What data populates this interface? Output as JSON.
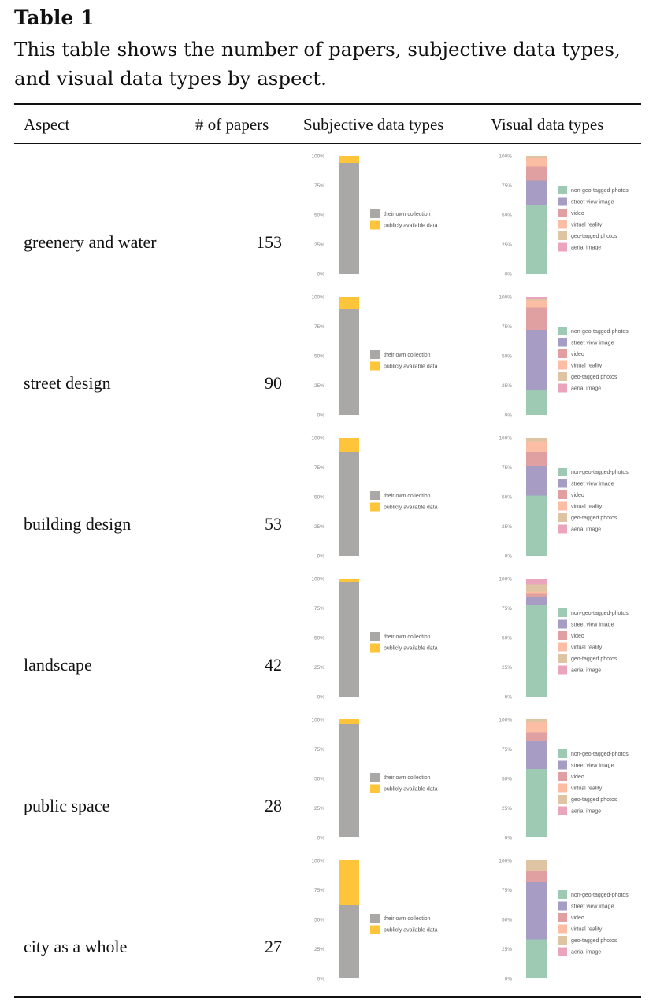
{
  "caption": {
    "label": "Table 1",
    "text": "This table shows the number of papers, subjective data types, and visual data types by aspect."
  },
  "headers": {
    "aspect": "Aspect",
    "papers": "# of papers",
    "subjective": "Subjective data types",
    "visual": "Visual data types"
  },
  "axis_ticks": [
    "100%",
    "75%",
    "50%",
    "25%",
    "0%"
  ],
  "colors": {
    "their_own_collection": "#a9a8a6",
    "publicly_available_data": "#fec43a",
    "non_geo_tagged_photos": "#9ec9b3",
    "street_view_image": "#a69cc4",
    "video": "#e0a0a2",
    "virtual_reality": "#fbbea4",
    "geo_tagged_photos": "#dfc4a4",
    "aerial_image": "#eaa4bc"
  },
  "chart_data": [
    {
      "type": "bar",
      "aspect": "greenery and water",
      "papers": "153",
      "subjective": {
        "categories": [
          "their own collection",
          "publicly available data"
        ],
        "values": [
          94,
          6
        ]
      },
      "visual": {
        "categories": [
          "non-geo-tagged-photos",
          "street view image",
          "video",
          "virtual reality",
          "geo-tagged photos",
          "aerial image"
        ],
        "values": [
          58,
          21,
          12,
          7,
          2,
          0
        ]
      }
    },
    {
      "type": "bar",
      "aspect": "street design",
      "papers": "90",
      "subjective": {
        "categories": [
          "their own collection",
          "publicly available data"
        ],
        "values": [
          90,
          10
        ]
      },
      "visual": {
        "categories": [
          "non-geo-tagged-photos",
          "street view image",
          "video",
          "virtual reality",
          "geo-tagged photos",
          "aerial image"
        ],
        "values": [
          21,
          51,
          19,
          6,
          1,
          2
        ]
      }
    },
    {
      "type": "bar",
      "aspect": "building design",
      "papers": "53",
      "subjective": {
        "categories": [
          "their own collection",
          "publicly available data"
        ],
        "values": [
          88,
          12
        ]
      },
      "visual": {
        "categories": [
          "non-geo-tagged-photos",
          "street view image",
          "video",
          "virtual reality",
          "geo-tagged photos",
          "aerial image"
        ],
        "values": [
          51,
          25,
          12,
          9,
          3,
          0
        ]
      }
    },
    {
      "type": "bar",
      "aspect": "landscape",
      "papers": "42",
      "subjective": {
        "categories": [
          "their own collection",
          "publicly available data"
        ],
        "values": [
          97,
          3
        ]
      },
      "visual": {
        "categories": [
          "non-geo-tagged-photos",
          "street view image",
          "video",
          "virtual reality",
          "geo-tagged photos",
          "aerial image"
        ],
        "values": [
          78,
          6,
          3,
          2,
          6,
          5
        ]
      }
    },
    {
      "type": "bar",
      "aspect": "public space",
      "papers": "28",
      "subjective": {
        "categories": [
          "their own collection",
          "publicly available data"
        ],
        "values": [
          96,
          4
        ]
      },
      "visual": {
        "categories": [
          "non-geo-tagged-photos",
          "street view image",
          "video",
          "virtual reality",
          "geo-tagged photos",
          "aerial image"
        ],
        "values": [
          58,
          24,
          7,
          9,
          2,
          0
        ]
      }
    },
    {
      "type": "bar",
      "aspect": "city as a whole",
      "papers": "27",
      "subjective": {
        "categories": [
          "their own collection",
          "publicly available data"
        ],
        "values": [
          62,
          38
        ]
      },
      "visual": {
        "categories": [
          "non-geo-tagged-photos",
          "street view image",
          "video",
          "virtual reality",
          "geo-tagged photos",
          "aerial image"
        ],
        "values": [
          33,
          49,
          9,
          0,
          9,
          0
        ]
      }
    }
  ]
}
